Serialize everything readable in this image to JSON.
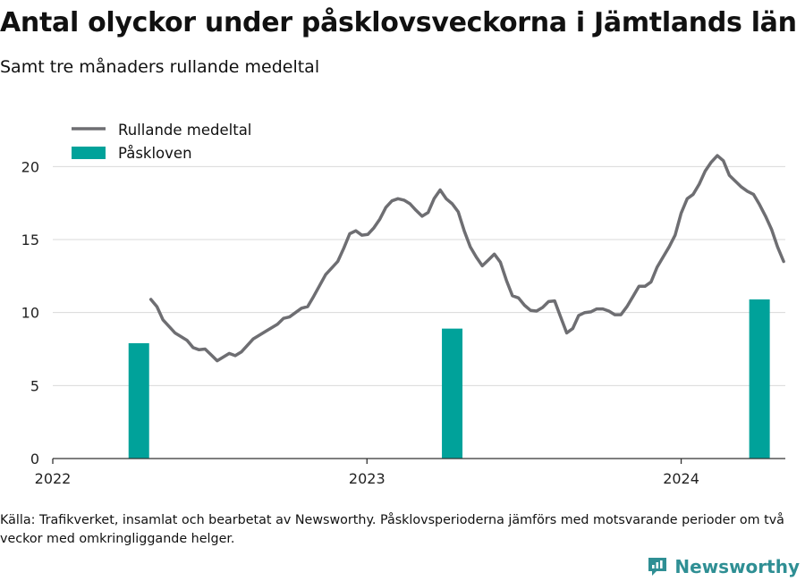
{
  "header": {
    "title": "Antal olyckor under påsklovsveckorna i Jämtlands län",
    "subtitle": "Samt tre månaders rullande medeltal"
  },
  "footer": {
    "source": "Källa: Trafikverket, insamlat och bearbetat av Newsworthy. Påsklovsperioderna jämförs med motsvarande perioder om två veckor med omkringliggande helger.",
    "brand": "Newsworthy"
  },
  "colors": {
    "line": "#6e6e72",
    "bar": "#00a29a",
    "brand": "#2f8f94"
  },
  "chart_data": {
    "type": "bar",
    "x_axis": {
      "type": "time",
      "range": [
        "2022-01-01",
        "2024-05-01"
      ],
      "ticks": [
        "2022",
        "2023",
        "2024"
      ]
    },
    "y_axis": {
      "range": [
        0,
        21
      ],
      "ticks": [
        0,
        5,
        10,
        15,
        20
      ]
    },
    "grid": "horizontal",
    "legend": {
      "placement": "top-left",
      "entries": [
        {
          "label": "Rullande medeltal",
          "kind": "line"
        },
        {
          "label": "Påskloven",
          "kind": "bar"
        }
      ]
    },
    "series": [
      {
        "name": "Påskloven",
        "type": "bar",
        "points": [
          {
            "x": "2022-04-11",
            "y": 7.9
          },
          {
            "x": "2023-04-10",
            "y": 8.9
          },
          {
            "x": "2024-04-01",
            "y": 10.9
          }
        ]
      },
      {
        "name": "Rullande medeltal",
        "type": "line",
        "points": [
          [
            "2022-04-25",
            10.9
          ],
          [
            "2022-05-02",
            10.4
          ],
          [
            "2022-05-09",
            9.5
          ],
          [
            "2022-05-23",
            8.6
          ],
          [
            "2022-06-06",
            8.1
          ],
          [
            "2022-06-13",
            7.6
          ],
          [
            "2022-06-20",
            7.45
          ],
          [
            "2022-06-27",
            7.5
          ],
          [
            "2022-07-04",
            7.1
          ],
          [
            "2022-07-11",
            6.7
          ],
          [
            "2022-07-25",
            7.2
          ],
          [
            "2022-08-01",
            7.05
          ],
          [
            "2022-08-08",
            7.3
          ],
          [
            "2022-08-22",
            8.2
          ],
          [
            "2022-09-05",
            8.7
          ],
          [
            "2022-09-19",
            9.2
          ],
          [
            "2022-09-26",
            9.6
          ],
          [
            "2022-10-03",
            9.7
          ],
          [
            "2022-10-17",
            10.3
          ],
          [
            "2022-10-24",
            10.4
          ],
          [
            "2022-10-31",
            11.1
          ],
          [
            "2022-11-14",
            12.6
          ],
          [
            "2022-11-28",
            13.5
          ],
          [
            "2022-12-05",
            14.4
          ],
          [
            "2022-12-12",
            15.4
          ],
          [
            "2022-12-19",
            15.6
          ],
          [
            "2022-12-26",
            15.3
          ],
          [
            "2023-01-02",
            15.35
          ],
          [
            "2023-01-09",
            15.8
          ],
          [
            "2023-01-16",
            16.4
          ],
          [
            "2023-01-23",
            17.2
          ],
          [
            "2023-01-30",
            17.65
          ],
          [
            "2023-02-06",
            17.8
          ],
          [
            "2023-02-13",
            17.7
          ],
          [
            "2023-02-20",
            17.45
          ],
          [
            "2023-02-27",
            17.0
          ],
          [
            "2023-03-06",
            16.6
          ],
          [
            "2023-03-13",
            16.85
          ],
          [
            "2023-03-20",
            17.8
          ],
          [
            "2023-03-27",
            18.4
          ],
          [
            "2023-04-03",
            17.8
          ],
          [
            "2023-04-10",
            17.45
          ],
          [
            "2023-04-17",
            16.9
          ],
          [
            "2023-04-24",
            15.6
          ],
          [
            "2023-05-01",
            14.5
          ],
          [
            "2023-05-08",
            13.8
          ],
          [
            "2023-05-15",
            13.2
          ],
          [
            "2023-05-22",
            13.6
          ],
          [
            "2023-05-29",
            14.0
          ],
          [
            "2023-06-05",
            13.45
          ],
          [
            "2023-06-12",
            12.2
          ],
          [
            "2023-06-19",
            11.15
          ],
          [
            "2023-06-26",
            11.0
          ],
          [
            "2023-07-03",
            10.5
          ],
          [
            "2023-07-10",
            10.15
          ],
          [
            "2023-07-17",
            10.1
          ],
          [
            "2023-07-24",
            10.35
          ],
          [
            "2023-07-31",
            10.75
          ],
          [
            "2023-08-07",
            10.8
          ],
          [
            "2023-08-14",
            9.7
          ],
          [
            "2023-08-21",
            8.6
          ],
          [
            "2023-08-28",
            8.9
          ],
          [
            "2023-09-04",
            9.8
          ],
          [
            "2023-09-11",
            10.0
          ],
          [
            "2023-09-18",
            10.05
          ],
          [
            "2023-09-25",
            10.25
          ],
          [
            "2023-10-02",
            10.25
          ],
          [
            "2023-10-09",
            10.1
          ],
          [
            "2023-10-16",
            9.85
          ],
          [
            "2023-10-23",
            9.85
          ],
          [
            "2023-10-30",
            10.4
          ],
          [
            "2023-11-06",
            11.1
          ],
          [
            "2023-11-13",
            11.8
          ],
          [
            "2023-11-20",
            11.8
          ],
          [
            "2023-11-27",
            12.1
          ],
          [
            "2023-12-04",
            13.1
          ],
          [
            "2023-12-11",
            13.8
          ],
          [
            "2023-12-18",
            14.5
          ],
          [
            "2023-12-25",
            15.3
          ],
          [
            "2024-01-01",
            16.8
          ],
          [
            "2024-01-08",
            17.8
          ],
          [
            "2024-01-15",
            18.1
          ],
          [
            "2024-01-22",
            18.8
          ],
          [
            "2024-01-29",
            19.7
          ],
          [
            "2024-02-05",
            20.3
          ],
          [
            "2024-02-12",
            20.75
          ],
          [
            "2024-02-19",
            20.4
          ],
          [
            "2024-02-26",
            19.4
          ],
          [
            "2024-03-04",
            19.0
          ],
          [
            "2024-03-11",
            18.6
          ],
          [
            "2024-03-18",
            18.3
          ],
          [
            "2024-03-25",
            18.1
          ],
          [
            "2024-04-01",
            17.4
          ],
          [
            "2024-04-08",
            16.6
          ],
          [
            "2024-04-15",
            15.7
          ],
          [
            "2024-04-22",
            14.5
          ],
          [
            "2024-04-29",
            13.5
          ]
        ]
      }
    ]
  }
}
